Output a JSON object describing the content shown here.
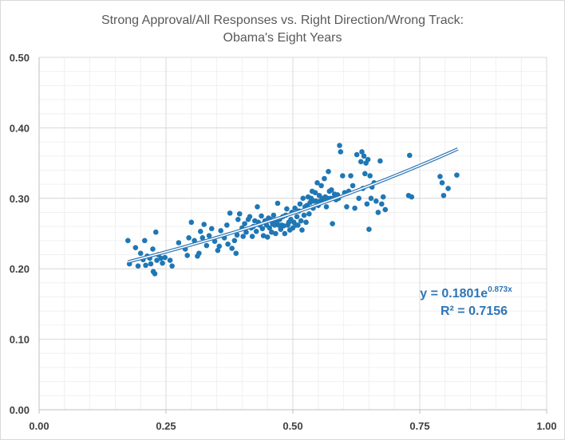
{
  "chart_data": {
    "type": "scatter",
    "title": [
      "Strong Approval/All Responses vs. Right Direction/Wrong Track:",
      "Obama's Eight Years"
    ],
    "xlabel": "",
    "ylabel": "",
    "xlim": [
      0,
      1
    ],
    "ylim": [
      0,
      0.5
    ],
    "x_ticks": [
      "0.00",
      "0.25",
      "0.50",
      "0.75",
      "1.00"
    ],
    "y_ticks": [
      "0.00",
      "0.10",
      "0.20",
      "0.30",
      "0.40",
      "0.50"
    ],
    "grid": true,
    "marker_color": "#1f77b4",
    "trendline": {
      "type": "exponential",
      "a": 0.1801,
      "b": 0.873,
      "x_range": [
        0.175,
        0.825
      ],
      "color": "#2e75b6",
      "equation_label": "y = 0.1801e",
      "equation_exponent": "0.873x",
      "r2_label": "R² = 0.7156"
    },
    "points": [
      [
        0.175,
        0.24
      ],
      [
        0.178,
        0.207
      ],
      [
        0.19,
        0.23
      ],
      [
        0.195,
        0.204
      ],
      [
        0.2,
        0.222
      ],
      [
        0.205,
        0.213
      ],
      [
        0.208,
        0.24
      ],
      [
        0.21,
        0.205
      ],
      [
        0.213,
        0.218
      ],
      [
        0.218,
        0.215
      ],
      [
        0.22,
        0.207
      ],
      [
        0.224,
        0.228
      ],
      [
        0.225,
        0.196
      ],
      [
        0.228,
        0.193
      ],
      [
        0.23,
        0.252
      ],
      [
        0.232,
        0.212
      ],
      [
        0.235,
        0.22
      ],
      [
        0.24,
        0.215
      ],
      [
        0.243,
        0.208
      ],
      [
        0.248,
        0.216
      ],
      [
        0.258,
        0.212
      ],
      [
        0.262,
        0.204
      ],
      [
        0.275,
        0.237
      ],
      [
        0.288,
        0.228
      ],
      [
        0.292,
        0.219
      ],
      [
        0.295,
        0.244
      ],
      [
        0.3,
        0.266
      ],
      [
        0.306,
        0.24
      ],
      [
        0.312,
        0.218
      ],
      [
        0.315,
        0.222
      ],
      [
        0.318,
        0.253
      ],
      [
        0.322,
        0.244
      ],
      [
        0.325,
        0.263
      ],
      [
        0.33,
        0.233
      ],
      [
        0.335,
        0.247
      ],
      [
        0.34,
        0.257
      ],
      [
        0.346,
        0.239
      ],
      [
        0.352,
        0.226
      ],
      [
        0.355,
        0.232
      ],
      [
        0.358,
        0.254
      ],
      [
        0.365,
        0.244
      ],
      [
        0.37,
        0.262
      ],
      [
        0.372,
        0.235
      ],
      [
        0.376,
        0.279
      ],
      [
        0.38,
        0.229
      ],
      [
        0.385,
        0.24
      ],
      [
        0.388,
        0.222
      ],
      [
        0.39,
        0.248
      ],
      [
        0.392,
        0.27
      ],
      [
        0.395,
        0.278
      ],
      [
        0.4,
        0.258
      ],
      [
        0.402,
        0.246
      ],
      [
        0.405,
        0.264
      ],
      [
        0.408,
        0.252
      ],
      [
        0.412,
        0.27
      ],
      [
        0.415,
        0.274
      ],
      [
        0.418,
        0.258
      ],
      [
        0.42,
        0.246
      ],
      [
        0.422,
        0.26
      ],
      [
        0.425,
        0.268
      ],
      [
        0.428,
        0.253
      ],
      [
        0.43,
        0.288
      ],
      [
        0.432,
        0.266
      ],
      [
        0.435,
        0.262
      ],
      [
        0.438,
        0.275
      ],
      [
        0.44,
        0.257
      ],
      [
        0.442,
        0.247
      ],
      [
        0.445,
        0.268
      ],
      [
        0.448,
        0.262
      ],
      [
        0.45,
        0.245
      ],
      [
        0.452,
        0.272
      ],
      [
        0.454,
        0.258
      ],
      [
        0.456,
        0.27
      ],
      [
        0.458,
        0.252
      ],
      [
        0.46,
        0.264
      ],
      [
        0.462,
        0.276
      ],
      [
        0.464,
        0.262
      ],
      [
        0.466,
        0.25
      ],
      [
        0.468,
        0.267
      ],
      [
        0.47,
        0.293
      ],
      [
        0.472,
        0.262
      ],
      [
        0.474,
        0.27
      ],
      [
        0.476,
        0.256
      ],
      [
        0.478,
        0.262
      ],
      [
        0.48,
        0.274
      ],
      [
        0.482,
        0.261
      ],
      [
        0.484,
        0.25
      ],
      [
        0.486,
        0.276
      ],
      [
        0.488,
        0.285
      ],
      [
        0.49,
        0.262
      ],
      [
        0.492,
        0.266
      ],
      [
        0.494,
        0.255
      ],
      [
        0.496,
        0.27
      ],
      [
        0.498,
        0.28
      ],
      [
        0.5,
        0.258
      ],
      [
        0.502,
        0.266
      ],
      [
        0.504,
        0.286
      ],
      [
        0.506,
        0.262
      ],
      [
        0.508,
        0.274
      ],
      [
        0.51,
        0.262
      ],
      [
        0.512,
        0.282
      ],
      [
        0.514,
        0.292
      ],
      [
        0.516,
        0.268
      ],
      [
        0.518,
        0.255
      ],
      [
        0.52,
        0.3
      ],
      [
        0.522,
        0.276
      ],
      [
        0.524,
        0.288
      ],
      [
        0.526,
        0.266
      ],
      [
        0.528,
        0.29
      ],
      [
        0.53,
        0.302
      ],
      [
        0.532,
        0.278
      ],
      [
        0.534,
        0.294
      ],
      [
        0.536,
        0.3
      ],
      [
        0.538,
        0.31
      ],
      [
        0.54,
        0.286
      ],
      [
        0.542,
        0.296
      ],
      [
        0.544,
        0.308
      ],
      [
        0.546,
        0.296
      ],
      [
        0.548,
        0.322
      ],
      [
        0.55,
        0.29
      ],
      [
        0.552,
        0.304
      ],
      [
        0.554,
        0.296
      ],
      [
        0.556,
        0.318
      ],
      [
        0.558,
        0.3
      ],
      [
        0.56,
        0.296
      ],
      [
        0.562,
        0.328
      ],
      [
        0.564,
        0.302
      ],
      [
        0.566,
        0.288
      ],
      [
        0.568,
        0.3
      ],
      [
        0.57,
        0.338
      ],
      [
        0.572,
        0.31
      ],
      [
        0.574,
        0.3
      ],
      [
        0.576,
        0.312
      ],
      [
        0.578,
        0.264
      ],
      [
        0.58,
        0.3
      ],
      [
        0.582,
        0.306
      ],
      [
        0.585,
        0.298
      ],
      [
        0.588,
        0.305
      ],
      [
        0.59,
        0.3
      ],
      [
        0.592,
        0.375
      ],
      [
        0.594,
        0.366
      ],
      [
        0.598,
        0.332
      ],
      [
        0.602,
        0.308
      ],
      [
        0.606,
        0.288
      ],
      [
        0.61,
        0.31
      ],
      [
        0.614,
        0.332
      ],
      [
        0.618,
        0.318
      ],
      [
        0.622,
        0.286
      ],
      [
        0.626,
        0.362
      ],
      [
        0.63,
        0.3
      ],
      [
        0.634,
        0.352
      ],
      [
        0.636,
        0.366
      ],
      [
        0.638,
        0.314
      ],
      [
        0.64,
        0.36
      ],
      [
        0.642,
        0.335
      ],
      [
        0.644,
        0.35
      ],
      [
        0.646,
        0.292
      ],
      [
        0.648,
        0.355
      ],
      [
        0.65,
        0.256
      ],
      [
        0.652,
        0.332
      ],
      [
        0.654,
        0.3
      ],
      [
        0.656,
        0.316
      ],
      [
        0.66,
        0.322
      ],
      [
        0.664,
        0.296
      ],
      [
        0.668,
        0.28
      ],
      [
        0.672,
        0.353
      ],
      [
        0.675,
        0.292
      ],
      [
        0.678,
        0.302
      ],
      [
        0.682,
        0.284
      ],
      [
        0.728,
        0.304
      ],
      [
        0.73,
        0.361
      ],
      [
        0.734,
        0.302
      ],
      [
        0.79,
        0.331
      ],
      [
        0.794,
        0.322
      ],
      [
        0.797,
        0.304
      ],
      [
        0.806,
        0.314
      ],
      [
        0.823,
        0.333
      ]
    ]
  }
}
